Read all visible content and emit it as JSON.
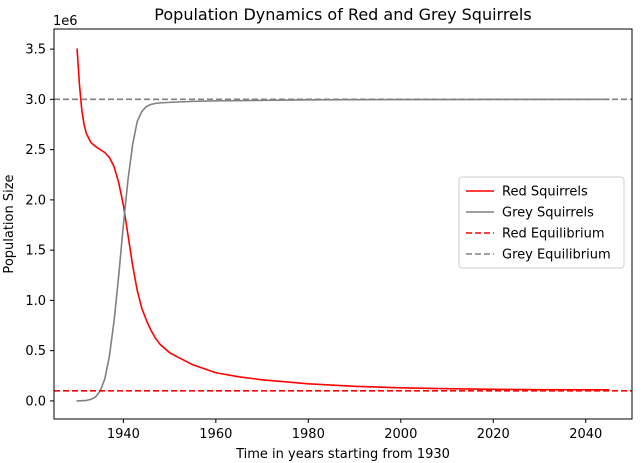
{
  "chart_data": {
    "type": "line",
    "title": "Population Dynamics of Red and Grey Squirrels",
    "xlabel": "Time in years starting from 1930",
    "ylabel": "Population Size",
    "y_offset_label": "1e6",
    "xlim": [
      1925,
      2050
    ],
    "ylim": [
      -0.18,
      3.7
    ],
    "x_ticks": [
      1940,
      1960,
      1980,
      2000,
      2020,
      2040
    ],
    "x_tick_labels": [
      "1940",
      "1960",
      "1980",
      "2000",
      "2020",
      "2040"
    ],
    "y_ticks": [
      0.0,
      0.5,
      1.0,
      1.5,
      2.0,
      2.5,
      3.0,
      3.5
    ],
    "y_tick_labels": [
      "0.0",
      "0.5",
      "1.0",
      "1.5",
      "2.0",
      "2.5",
      "3.0",
      "3.5"
    ],
    "grid": false,
    "legend_position": "center-right",
    "series": [
      {
        "name": "Red Squirrels",
        "color": "#ff0000",
        "style": "solid",
        "x": [
          1930,
          1930.5,
          1931,
          1931.5,
          1932,
          1933,
          1934,
          1935,
          1936,
          1937,
          1938,
          1939,
          1940,
          1941,
          1942,
          1943,
          1944,
          1945,
          1946,
          1947,
          1948,
          1950,
          1952,
          1955,
          1960,
          1965,
          1970,
          1980,
          1990,
          2000,
          2010,
          2020,
          2030,
          2045
        ],
        "y": [
          3.5,
          3.15,
          2.9,
          2.75,
          2.66,
          2.57,
          2.53,
          2.5,
          2.47,
          2.42,
          2.33,
          2.17,
          1.95,
          1.65,
          1.35,
          1.1,
          0.92,
          0.8,
          0.7,
          0.62,
          0.56,
          0.48,
          0.43,
          0.36,
          0.28,
          0.24,
          0.21,
          0.17,
          0.145,
          0.13,
          0.122,
          0.115,
          0.112,
          0.11
        ]
      },
      {
        "name": "Grey Squirrels",
        "color": "#808080",
        "style": "solid",
        "x": [
          1930,
          1931,
          1932,
          1933,
          1934,
          1935,
          1936,
          1937,
          1938,
          1939,
          1940,
          1941,
          1942,
          1943,
          1944,
          1945,
          1946,
          1947,
          1948,
          1950,
          1955,
          1960,
          1970,
          1980,
          2000,
          2045
        ],
        "y": [
          0.0,
          0.002,
          0.005,
          0.015,
          0.04,
          0.1,
          0.22,
          0.45,
          0.8,
          1.25,
          1.75,
          2.2,
          2.55,
          2.78,
          2.88,
          2.93,
          2.95,
          2.96,
          2.965,
          2.97,
          2.98,
          2.985,
          2.99,
          2.995,
          2.998,
          3.0
        ]
      },
      {
        "name": "Red Equilibrium",
        "color": "#ff0000",
        "style": "dashed",
        "y": 0.1
      },
      {
        "name": "Grey Equilibrium",
        "color": "#808080",
        "style": "dashed",
        "y": 3.0
      }
    ]
  }
}
